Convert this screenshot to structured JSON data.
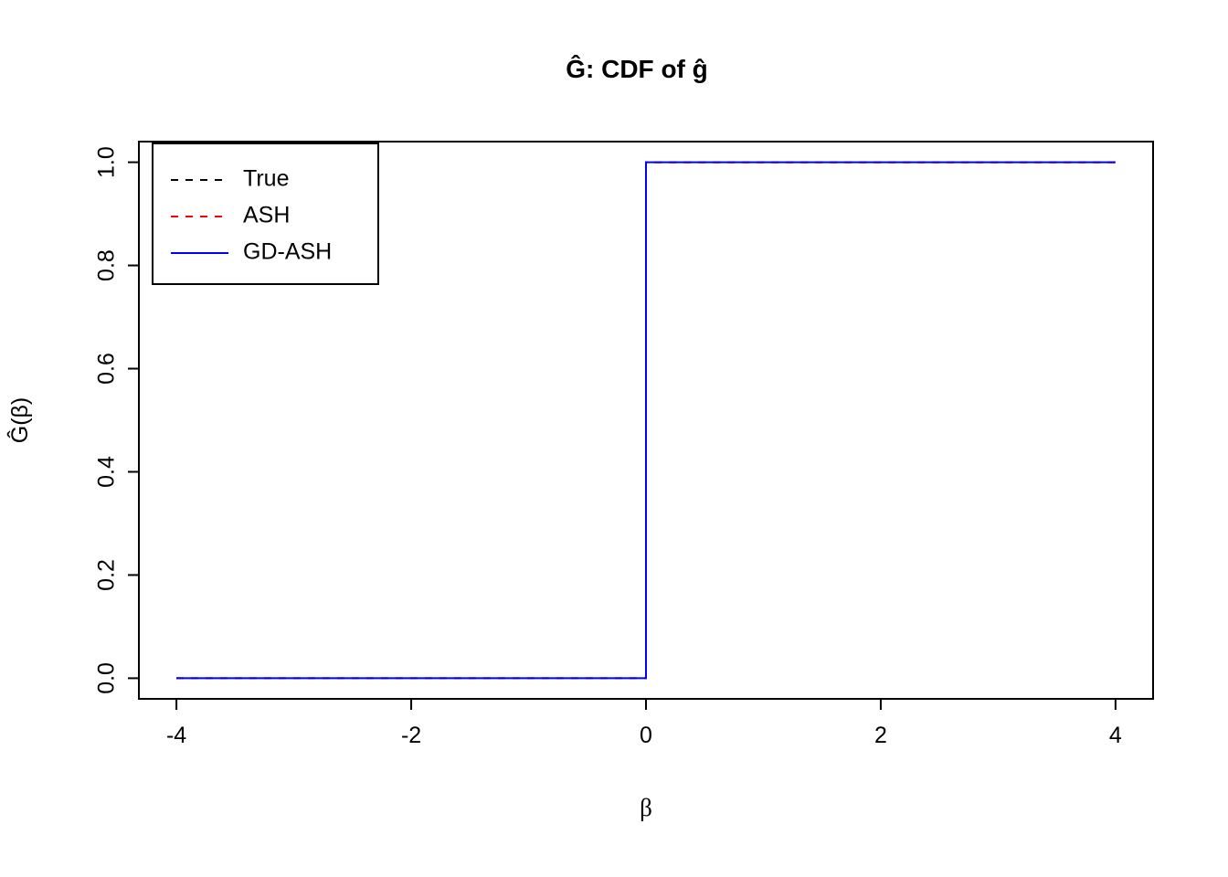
{
  "chart_data": {
    "type": "line",
    "title": "Ĝ: CDF of ĝ",
    "xlabel": "β",
    "ylabel": "Ĝ(β)",
    "xlim": [
      -4.32,
      4.32
    ],
    "ylim": [
      -0.04,
      1.04
    ],
    "grid": false,
    "x_ticks": [
      -4,
      -2,
      0,
      2,
      4
    ],
    "x_tick_labels": [
      "-4",
      "-2",
      "0",
      "2",
      "4"
    ],
    "y_ticks": [
      0,
      0.2,
      0.4,
      0.6,
      0.8,
      1.0
    ],
    "y_tick_labels": [
      "0.0",
      "0.2",
      "0.4",
      "0.6",
      "0.8",
      "1.0"
    ],
    "legend_position": "topleft",
    "series": [
      {
        "name": "True",
        "color": "#000000",
        "dash": "8,8",
        "x": [
          -4,
          0,
          0,
          4
        ],
        "y": [
          0,
          0,
          1,
          1
        ]
      },
      {
        "name": "ASH",
        "color": "#ff0000",
        "dash": "8,8",
        "x": [
          -4,
          0,
          0,
          4
        ],
        "y": [
          0,
          0,
          1,
          1
        ]
      },
      {
        "name": "GD-ASH",
        "color": "#0000ff",
        "dash": "",
        "x": [
          -4,
          0,
          0,
          4
        ],
        "y": [
          0,
          0,
          1,
          1
        ]
      }
    ]
  }
}
